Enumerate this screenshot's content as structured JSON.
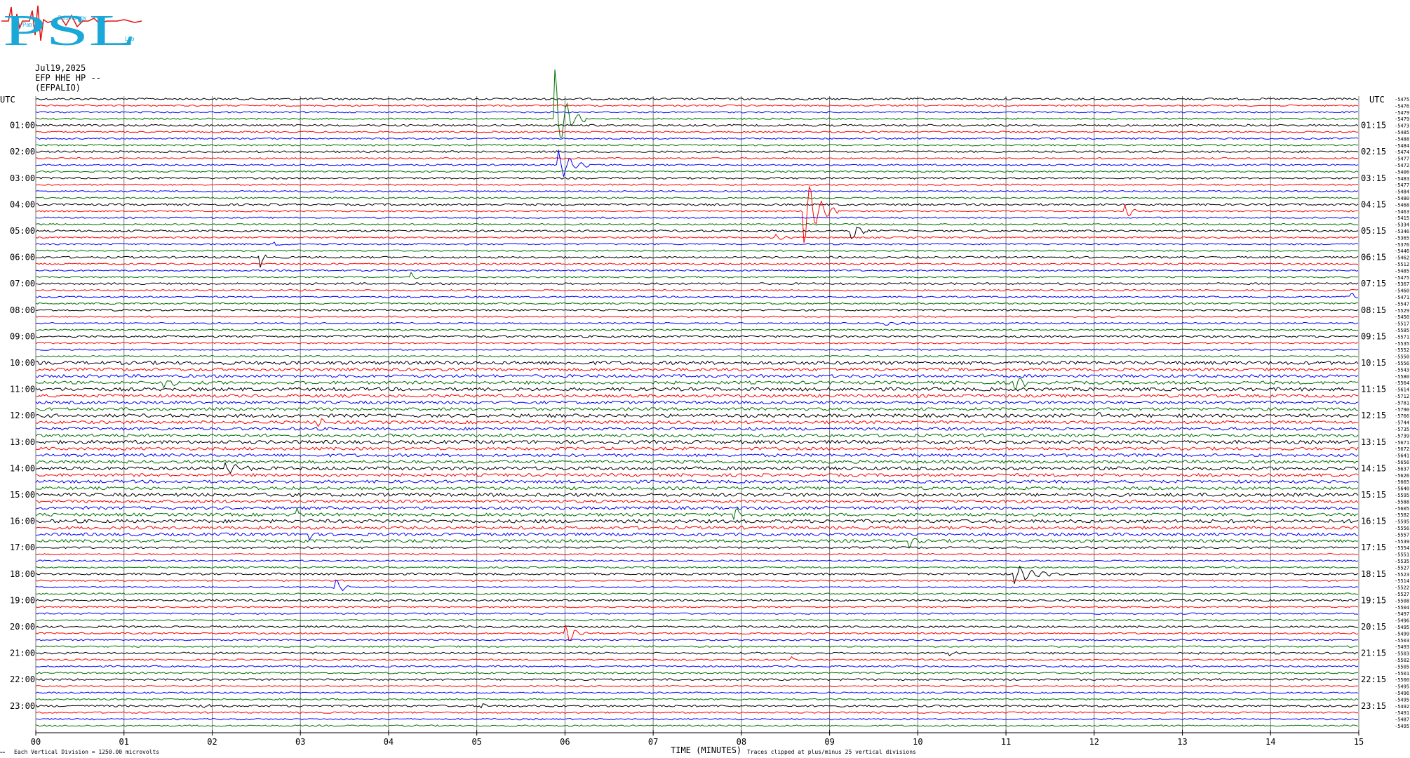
{
  "logo": {
    "text": "PSL",
    "subtext": [
      "Patras",
      "Seismology",
      "Lab"
    ]
  },
  "header": {
    "date": "Jul19,2025",
    "channel": "EFP HHE HP --",
    "station": "(EFPALIO)"
  },
  "chart_data": {
    "type": "line",
    "title": "",
    "xlabel": "TIME (MINUTES)",
    "ylabel": "UTC",
    "ylabel_right": "UTC",
    "xlim": [
      0,
      15
    ],
    "x_ticks": [
      "00",
      "01",
      "02",
      "03",
      "04",
      "05",
      "06",
      "07",
      "08",
      "09",
      "10",
      "11",
      "12",
      "13",
      "14",
      "15"
    ],
    "left_hours": [
      "01:00",
      "02:00",
      "03:00",
      "04:00",
      "05:00",
      "06:00",
      "07:00",
      "08:00",
      "09:00",
      "10:00",
      "11:00",
      "12:00",
      "13:00",
      "14:00",
      "15:00",
      "16:00",
      "17:00",
      "18:00",
      "19:00",
      "20:00",
      "21:00",
      "22:00",
      "23:00"
    ],
    "right_hours": [
      "01:15",
      "02:15",
      "03:15",
      "04:15",
      "05:15",
      "06:15",
      "07:15",
      "08:15",
      "09:15",
      "10:15",
      "11:15",
      "12:15",
      "13:15",
      "14:15",
      "15:15",
      "16:15",
      "17:15",
      "18:15",
      "19:15",
      "20:15",
      "21:15",
      "22:15",
      "23:15"
    ],
    "trace_colors": [
      "#000000",
      "#ff0000",
      "#0000ff",
      "#007000"
    ],
    "trace_offsets": [
      "-5475",
      "-5476",
      "-5479",
      "-5479",
      "-5473",
      "-5485",
      "-5488",
      "-5484",
      "-5474",
      "-5477",
      "-5472",
      "-5406",
      "-5483",
      "-5477",
      "-5484",
      "-5480",
      "-5468",
      "-5463",
      "-5415",
      "-5334",
      "-5346",
      "-5365",
      "-5376",
      "-5446",
      "-5462",
      "-5512",
      "-5485",
      "-5475",
      "-5367",
      "-5460",
      "-5471",
      "-5547",
      "-5529",
      "-5450",
      "-5517",
      "-5585",
      "-5571",
      "-5535",
      "-5552",
      "-5550",
      "-5556",
      "-5543",
      "-5580",
      "-5564",
      "-5614",
      "-5712",
      "-5781",
      "-5790",
      "-5766",
      "-5744",
      "-5735",
      "-5739",
      "-5671",
      "-5672",
      "-5641",
      "-5656",
      "-5637",
      "-5626",
      "-5665",
      "-5640",
      "-5595",
      "-5588",
      "-5605",
      "-5582",
      "-5595",
      "-5556",
      "-5557",
      "-5539",
      "-5554",
      "-5551",
      "-5535",
      "-5527",
      "-5523",
      "-5514",
      "-5522",
      "-5527",
      "-5508",
      "-5504",
      "-5497",
      "-5496",
      "-5495",
      "-5499",
      "-5503",
      "-5493",
      "-5503",
      "-5502",
      "-5505",
      "-5501",
      "-5500",
      "-5495",
      "-5496",
      "-5495",
      "-5492",
      "-5491",
      "-5487",
      "-5495"
    ],
    "events": [
      {
        "trace": 3,
        "minute": 5.88,
        "amp": 70,
        "dur": 0.35,
        "mark": "blue"
      },
      {
        "trace": 10,
        "minute": 5.92,
        "amp": 25,
        "dur": 0.4,
        "mark": "green"
      },
      {
        "trace": 17,
        "minute": 8.7,
        "amp": 60,
        "dur": 0.4,
        "mark": "blue"
      },
      {
        "trace": 20,
        "minute": 9.25,
        "amp": 20,
        "dur": 0.2,
        "mark": "black"
      },
      {
        "trace": 21,
        "minute": 8.4,
        "amp": 6,
        "dur": 0.2,
        "mark": "red"
      },
      {
        "trace": 17,
        "minute": 12.35,
        "amp": 14,
        "dur": 0.2,
        "mark": "red"
      },
      {
        "trace": 22,
        "minute": 2.7,
        "amp": 7,
        "dur": 0.1,
        "mark": "blue"
      },
      {
        "trace": 24,
        "minute": 2.55,
        "amp": 14,
        "dur": 0.1,
        "mark": "black"
      },
      {
        "trace": 27,
        "minute": 4.25,
        "amp": 7,
        "dur": 0.15,
        "mark": "green"
      },
      {
        "trace": 30,
        "minute": 14.92,
        "amp": 9,
        "dur": 0.08,
        "mark": "blue"
      },
      {
        "trace": 34,
        "minute": 9.6,
        "amp": 5,
        "dur": 0.4,
        "mark": "blue"
      },
      {
        "trace": 43,
        "minute": 1.45,
        "amp": 10,
        "dur": 0.25,
        "mark": "green"
      },
      {
        "trace": 43,
        "minute": 11.1,
        "amp": 14,
        "dur": 0.3,
        "mark": "green"
      },
      {
        "trace": 49,
        "minute": 3.2,
        "amp": 8,
        "dur": 0.2,
        "mark": "red"
      },
      {
        "trace": 48,
        "minute": 12.05,
        "amp": 5,
        "dur": 0.15,
        "mark": "black"
      },
      {
        "trace": 56,
        "minute": 2.15,
        "amp": 12,
        "dur": 0.35,
        "mark": "black"
      },
      {
        "trace": 63,
        "minute": 7.92,
        "amp": 18,
        "dur": 0.15,
        "mark": "blue"
      },
      {
        "trace": 63,
        "minute": 2.95,
        "amp": 13,
        "dur": 0.12,
        "mark": "blue"
      },
      {
        "trace": 66,
        "minute": 3.1,
        "amp": 14,
        "dur": 0.12,
        "mark": "red"
      },
      {
        "trace": 67,
        "minute": 9.9,
        "amp": 9,
        "dur": 0.15,
        "mark": "blue"
      },
      {
        "trace": 72,
        "minute": 11.1,
        "amp": 14,
        "dur": 0.6,
        "mark": "green"
      },
      {
        "trace": 74,
        "minute": 3.38,
        "amp": 20,
        "dur": 0.2,
        "mark": "blue"
      },
      {
        "trace": 81,
        "minute": 6.0,
        "amp": 22,
        "dur": 0.25,
        "mark": "red"
      },
      {
        "trace": 84,
        "minute": 10.35,
        "amp": 5,
        "dur": 0.15,
        "mark": "black"
      },
      {
        "trace": 85,
        "minute": 8.55,
        "amp": 7,
        "dur": 0.08,
        "mark": "red"
      },
      {
        "trace": 92,
        "minute": 5.05,
        "amp": 9,
        "dur": 0.15,
        "mark": "black"
      },
      {
        "trace": 92,
        "minute": 1.9,
        "amp": 4,
        "dur": 0.15,
        "mark": "black"
      }
    ]
  },
  "footer": {
    "scale_note": "Each Vertical Division = 1250.00 microvolts",
    "clip_note": "Traces clipped at plus/minus 25 vertical divisions",
    "corner_mark": "=="
  }
}
